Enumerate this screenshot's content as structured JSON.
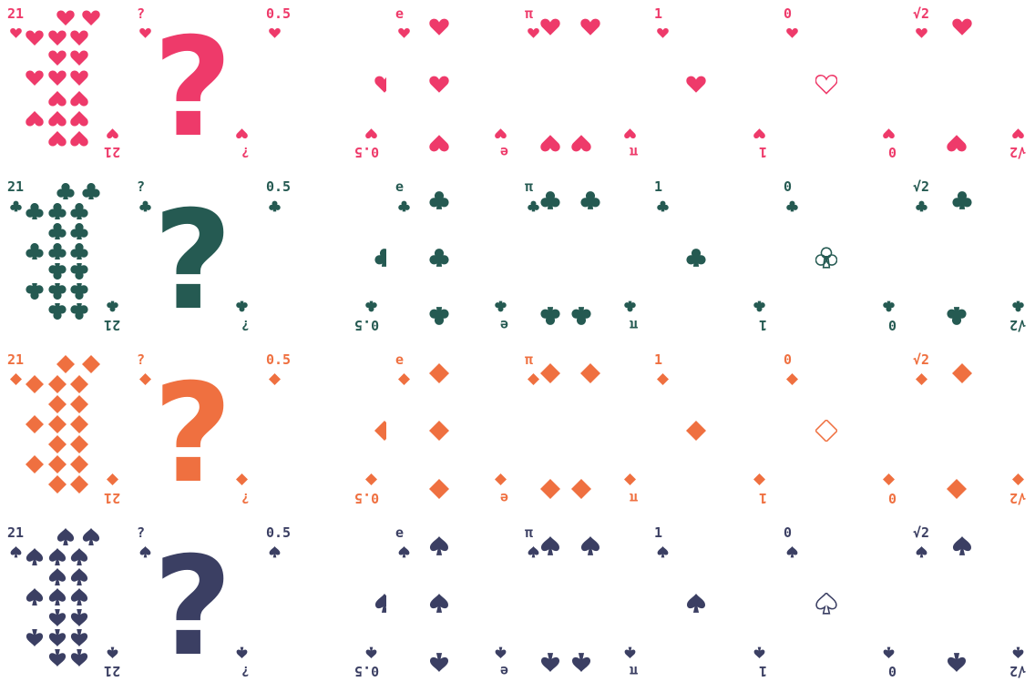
{
  "colors": {
    "hearts": "#ee3a6a",
    "clubs": "#255a52",
    "diamonds": "#ef7040",
    "spades": "#3b3f63"
  },
  "suits": [
    {
      "name": "hearts",
      "icon": "heart-icon"
    },
    {
      "name": "clubs",
      "icon": "club-icon"
    },
    {
      "name": "diamonds",
      "icon": "diamond-icon"
    },
    {
      "name": "spades",
      "icon": "spade-icon"
    }
  ],
  "cards": [
    {
      "rank": "21",
      "type": "twentyone"
    },
    {
      "rank": "?",
      "type": "question",
      "center_text": "?"
    },
    {
      "rank": "0.5",
      "type": "half"
    },
    {
      "rank": "e",
      "type": "e"
    },
    {
      "rank": "π",
      "type": "pi"
    },
    {
      "rank": "1",
      "type": "one"
    },
    {
      "rank": "0",
      "type": "zero"
    },
    {
      "rank": "√2",
      "type": "root2"
    }
  ]
}
